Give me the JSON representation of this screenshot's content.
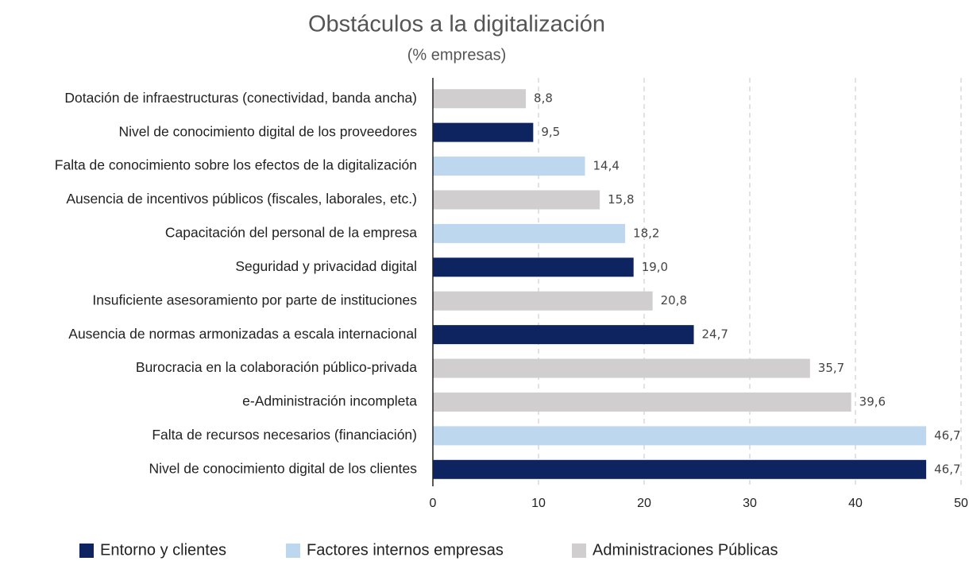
{
  "chart_data": {
    "type": "bar",
    "orientation": "horizontal",
    "title": "Obstáculos a la digitalización",
    "subtitle": "(% empresas)",
    "categories": [
      "Dotación de infraestructuras (conectividad, banda ancha)",
      "Nivel de conocimiento digital de los proveedores",
      "Falta de conocimiento sobre los efectos de la digitalización",
      "Ausencia de incentivos públicos (fiscales, laborales, etc.)",
      "Capacitación del personal de la empresa",
      "Seguridad y privacidad digital",
      "Insuficiente asesoramiento por parte de instituciones",
      "Ausencia de normas armonizadas a escala internacional",
      "Burocracia en la colaboración público-privada",
      "e-Administración incompleta",
      "Falta de recursos necesarios (financiación)",
      "Nivel de conocimiento digital de los clientes"
    ],
    "series": [
      {
        "name": "Entorno y clientes",
        "color": "#0d2460",
        "values": [
          null,
          9.5,
          null,
          null,
          null,
          19.0,
          null,
          24.7,
          null,
          null,
          null,
          46.7
        ],
        "value_labels": [
          null,
          "9,5",
          null,
          null,
          null,
          "19,0",
          null,
          "24,7",
          null,
          null,
          null,
          "46,7"
        ]
      },
      {
        "name": "Factores internos empresas",
        "color": "#bdd7ee",
        "values": [
          null,
          null,
          14.4,
          null,
          18.2,
          null,
          null,
          null,
          null,
          null,
          46.7,
          null
        ],
        "value_labels": [
          null,
          null,
          "14,4",
          null,
          "18,2",
          null,
          null,
          null,
          null,
          null,
          "46,7",
          null
        ]
      },
      {
        "name": "Administraciones Públicas",
        "color": "#d0cece",
        "values": [
          8.8,
          null,
          null,
          15.8,
          null,
          null,
          20.8,
          null,
          35.7,
          39.6,
          null,
          null
        ],
        "value_labels": [
          "8,8",
          null,
          null,
          "15,8",
          null,
          null,
          "20,8",
          null,
          "35,7",
          "39,6",
          null,
          null
        ]
      }
    ],
    "xlim": [
      0,
      50
    ],
    "xticks": [
      0,
      10,
      20,
      30,
      40,
      50
    ],
    "grid": true,
    "legend": "bottom"
  }
}
